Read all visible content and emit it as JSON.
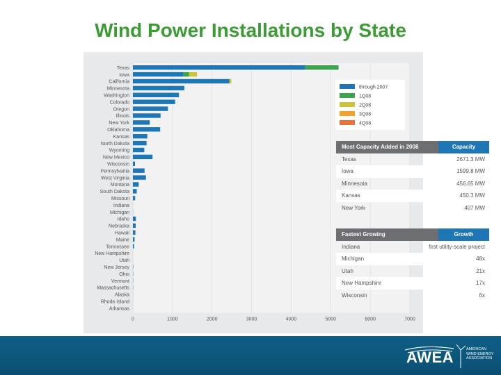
{
  "slide": {
    "title": "Wind Power Installations by State"
  },
  "chart_data": {
    "type": "bar",
    "orientation": "horizontal",
    "stacked": true,
    "categories": [
      "Texas",
      "Iowa",
      "California",
      "Minnesota",
      "Washington",
      "Colorado",
      "Oregon",
      "Illinois",
      "New York",
      "Oklahoma",
      "Kansas",
      "North Dakota",
      "Wyoming",
      "New Mexico",
      "Wisconsin",
      "Pennsylvania",
      "West Virginia",
      "Montana",
      "South Dakota",
      "Missouri",
      "Indiana",
      "Michigan",
      "Idaho",
      "Nebraska",
      "Hawaii",
      "Maine",
      "Tennessee",
      "New Hampshire",
      "Utah",
      "New Jersey",
      "Ohio",
      "Vermont",
      "Massachusetts",
      "Alaska",
      "Rhode Island",
      "Arkansas"
    ],
    "series": [
      {
        "name": "through 2007",
        "color": "#1f76b4",
        "values": [
          4356,
          1273,
          2439,
          1300,
          1163,
          1067,
          885,
          699,
          425,
          689,
          364,
          345,
          288,
          496,
          53,
          294,
          330,
          146,
          98,
          57,
          0,
          3,
          75,
          71,
          63,
          42,
          29,
          0,
          1,
          8,
          7,
          6,
          5,
          2,
          1,
          0
        ]
      },
      {
        "name": "1Q08",
        "color": "#3fa34d",
        "values": [
          842,
          148,
          0,
          0,
          0,
          0,
          0,
          0,
          0,
          0,
          0,
          0,
          0,
          0,
          0,
          0,
          0,
          0,
          0,
          0,
          0,
          0,
          0,
          0,
          0,
          0,
          0,
          0,
          0,
          0,
          0,
          0,
          0,
          0,
          0,
          0
        ]
      },
      {
        "name": "2Q08",
        "color": "#c9c23a",
        "values": [
          0,
          200,
          48,
          0,
          0,
          0,
          0,
          0,
          0,
          0,
          0,
          0,
          0,
          0,
          0,
          0,
          0,
          0,
          0,
          0,
          0,
          0,
          0,
          0,
          0,
          0,
          0,
          0,
          0,
          0,
          0,
          0,
          0,
          0,
          0,
          0
        ]
      },
      {
        "name": "3Q08",
        "color": "#f0a22e",
        "values": [
          0,
          0,
          0,
          0,
          0,
          0,
          0,
          0,
          0,
          0,
          0,
          0,
          0,
          0,
          0,
          0,
          0,
          0,
          0,
          0,
          0,
          0,
          0,
          0,
          0,
          0,
          0,
          0,
          0,
          0,
          0,
          0,
          0,
          0,
          0,
          0
        ]
      },
      {
        "name": "4Q08",
        "color": "#e8733a",
        "values": [
          0,
          0,
          0,
          0,
          0,
          0,
          0,
          0,
          0,
          0,
          0,
          0,
          0,
          0,
          0,
          0,
          0,
          0,
          0,
          0,
          0,
          0,
          0,
          0,
          0,
          0,
          0,
          0,
          0,
          0,
          0,
          0,
          0,
          0,
          0,
          0
        ]
      }
    ],
    "x_ticks": [
      "0",
      "1000",
      "2000",
      "3000",
      "4000",
      "5000",
      "6000",
      "7000"
    ],
    "xlim": [
      0,
      7000
    ],
    "legend_position": "top-right",
    "grid": true
  },
  "tables": {
    "capacity": {
      "header": [
        "Most Capacity Added in 2008",
        "Capacity"
      ],
      "rows": [
        [
          "Texas",
          "2671.3 MW"
        ],
        [
          "Iowa",
          "1599.8 MW"
        ],
        [
          "Minnesota",
          "456.65 MW"
        ],
        [
          "Kansas",
          "450.3 MW"
        ],
        [
          "New York",
          "407 MW"
        ]
      ]
    },
    "growth": {
      "header": [
        "Fastest Growing",
        "Growth"
      ],
      "rows": [
        [
          "Indiana",
          "first utility-scale project"
        ],
        [
          "Michigan",
          "48x"
        ],
        [
          "Utah",
          "21x"
        ],
        [
          "New Hampshire",
          "17x"
        ],
        [
          "Wisconsin",
          "6x"
        ]
      ]
    }
  },
  "footer": {
    "logo_text": "AWEA",
    "logo_sub": "AMERICAN WIND ENERGY ASSOCIATION"
  }
}
